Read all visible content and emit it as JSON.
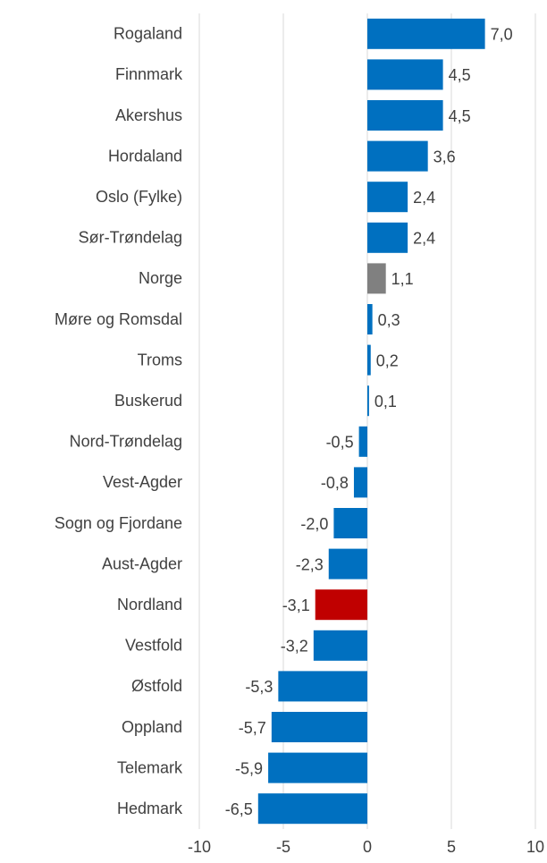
{
  "chart_data": {
    "type": "hbar",
    "categories": [
      "Rogaland",
      "Finnmark",
      "Akershus",
      "Hordaland",
      "Oslo (Fylke)",
      "Sør-Trøndelag",
      "Norge",
      "Møre og Romsdal",
      "Troms",
      "Buskerud",
      "Nord-Trøndelag",
      "Vest-Agder",
      "Sogn og Fjordane",
      "Aust-Agder",
      "Nordland",
      "Vestfold",
      "Østfold",
      "Oppland",
      "Telemark",
      "Hedmark"
    ],
    "values": [
      7.0,
      4.5,
      4.5,
      3.6,
      2.4,
      2.4,
      1.1,
      0.3,
      0.2,
      0.1,
      -0.5,
      -0.8,
      -2.0,
      -2.3,
      -3.1,
      -3.2,
      -5.3,
      -5.7,
      -5.9,
      -6.5
    ],
    "value_labels": [
      "7,0",
      "4,5",
      "4,5",
      "3,6",
      "2,4",
      "2,4",
      "1,1",
      "0,3",
      "0,2",
      "0,1",
      "-0,5",
      "-0,8",
      "-2,0",
      "-2,3",
      "-3,1",
      "-3,2",
      "-5,3",
      "-5,7",
      "-5,9",
      "-6,5"
    ],
    "colors": [
      "#0070c0",
      "#0070c0",
      "#0070c0",
      "#0070c0",
      "#0070c0",
      "#0070c0",
      "#808080",
      "#0070c0",
      "#0070c0",
      "#0070c0",
      "#0070c0",
      "#0070c0",
      "#0070c0",
      "#0070c0",
      "#c00000",
      "#0070c0",
      "#0070c0",
      "#0070c0",
      "#0070c0",
      "#0070c0"
    ],
    "xlim": [
      -10,
      10
    ],
    "xticks": [
      -10,
      -5,
      0,
      5,
      10
    ],
    "grid": true
  }
}
